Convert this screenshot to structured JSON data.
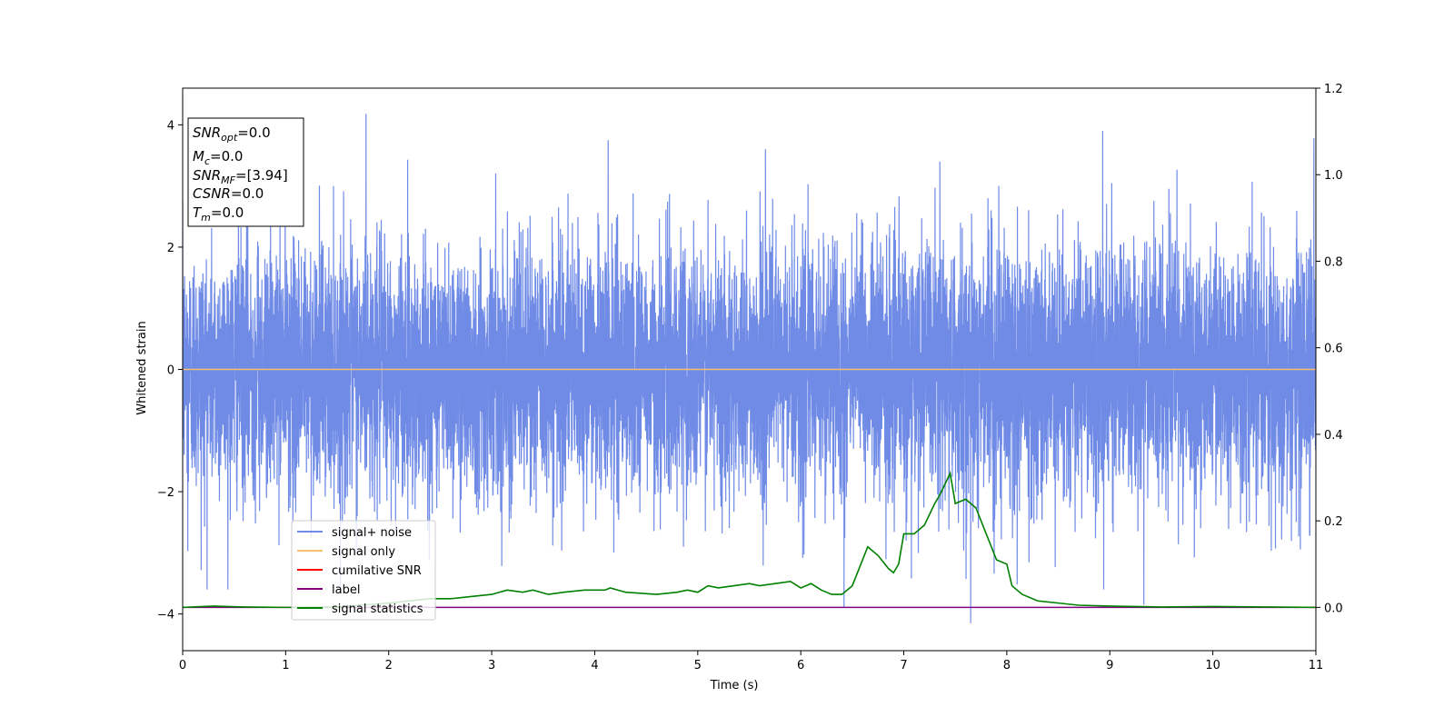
{
  "chart_data": {
    "type": "line",
    "xlabel": "Time (s)",
    "ylabel": "Whitened strain",
    "xlim": [
      0,
      11
    ],
    "ylim_left": [
      -4.6,
      4.6
    ],
    "ylim_right": [
      -0.1,
      1.2
    ],
    "x_ticks": [
      "0",
      "1",
      "2",
      "3",
      "4",
      "5",
      "6",
      "7",
      "8",
      "9",
      "10",
      "11"
    ],
    "y_ticks_left": [
      "−4",
      "−2",
      "0",
      "2",
      "4"
    ],
    "y_ticks_right": [
      "0.0",
      "0.2",
      "0.4",
      "0.6",
      "0.8",
      "1.0",
      "1.2"
    ],
    "grid": false,
    "legend_position": "lower-left",
    "info_box": {
      "snr_opt": "=0.0",
      "mc": "=0.0",
      "snr_mf": "=[3.94]",
      "csnr": "=0.0",
      "tm": "=0.0"
    },
    "series": [
      {
        "name": "signal+ noise",
        "axis": "left",
        "color": "#6f8be6",
        "description": "whitened noise, std ~1, spikes up to ~4.2, min ~-4.15",
        "duration": 11,
        "std": 1.0,
        "spikes": [
          [
            1.78,
            4.18
          ],
          [
            4.13,
            3.75
          ],
          [
            7.65,
            -4.15
          ],
          [
            6.42,
            -3.9
          ],
          [
            9.33,
            -3.85
          ],
          [
            8.93,
            3.9
          ],
          [
            10.98,
            3.78
          ],
          [
            0.05,
            -2.97
          ],
          [
            0.18,
            -3.28
          ],
          [
            7.35,
            3.4
          ]
        ]
      },
      {
        "name": "signal only",
        "axis": "left",
        "color": "#f5c26b",
        "x": [
          0,
          11
        ],
        "y": [
          0,
          0
        ]
      },
      {
        "name": "cumilative SNR",
        "axis": "left",
        "color": "#ff0000",
        "x": [],
        "y": []
      },
      {
        "name": "label",
        "axis": "right",
        "color": "#800080",
        "x": [
          0,
          11
        ],
        "y": [
          0,
          0
        ]
      },
      {
        "name": "signal statistics",
        "axis": "right",
        "color": "#008000",
        "x": [
          0,
          0.3,
          0.6,
          1.0,
          1.5,
          2.0,
          2.4,
          2.6,
          2.8,
          3.0,
          3.15,
          3.3,
          3.4,
          3.55,
          3.7,
          3.9,
          4.1,
          4.15,
          4.3,
          4.6,
          4.8,
          4.9,
          5.0,
          5.1,
          5.2,
          5.35,
          5.5,
          5.6,
          5.75,
          5.9,
          6.0,
          6.1,
          6.2,
          6.3,
          6.4,
          6.5,
          6.55,
          6.65,
          6.75,
          6.85,
          6.9,
          6.95,
          7.0,
          7.1,
          7.2,
          7.3,
          7.35,
          7.45,
          7.5,
          7.6,
          7.7,
          7.8,
          7.9,
          8.0,
          8.05,
          8.15,
          8.3,
          8.5,
          8.7,
          9.0,
          9.5,
          10.0,
          10.5,
          11.0
        ],
        "y": [
          0.0,
          0.003,
          0.001,
          0.0,
          0.001,
          0.01,
          0.02,
          0.02,
          0.025,
          0.03,
          0.04,
          0.035,
          0.04,
          0.03,
          0.035,
          0.04,
          0.04,
          0.045,
          0.035,
          0.03,
          0.035,
          0.04,
          0.035,
          0.05,
          0.045,
          0.05,
          0.055,
          0.05,
          0.055,
          0.06,
          0.045,
          0.055,
          0.04,
          0.03,
          0.03,
          0.05,
          0.08,
          0.14,
          0.12,
          0.09,
          0.08,
          0.1,
          0.17,
          0.17,
          0.19,
          0.24,
          0.26,
          0.31,
          0.24,
          0.25,
          0.23,
          0.17,
          0.11,
          0.1,
          0.05,
          0.03,
          0.015,
          0.01,
          0.005,
          0.003,
          0.001,
          0.002,
          0.001,
          0.0
        ]
      }
    ]
  }
}
